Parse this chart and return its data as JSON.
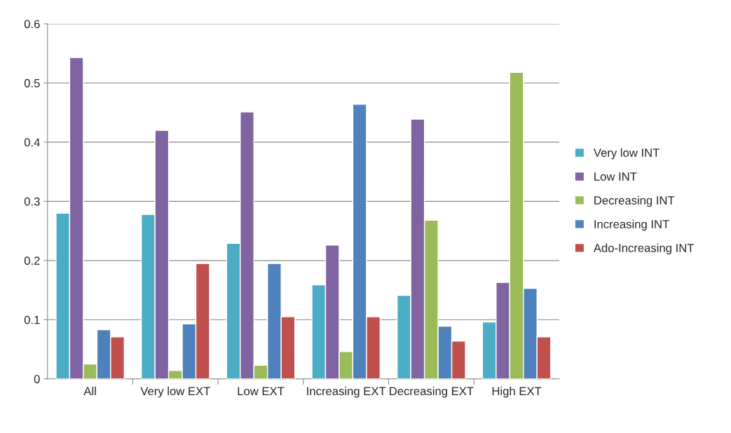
{
  "chart_data": {
    "type": "bar",
    "categories": [
      "All",
      "Very low EXT",
      "Low EXT",
      "Increasing EXT",
      "Decreasing EXT",
      "High EXT"
    ],
    "series": [
      {
        "name": "Very low INT",
        "color": "#4bacc6",
        "values": [
          0.28,
          0.278,
          0.229,
          0.159,
          0.141,
          0.096
        ]
      },
      {
        "name": "Low INT",
        "color": "#8064a2",
        "values": [
          0.543,
          0.42,
          0.451,
          0.226,
          0.439,
          0.163
        ]
      },
      {
        "name": "Decreasing INT",
        "color": "#9bbb59",
        "values": [
          0.025,
          0.014,
          0.023,
          0.046,
          0.268,
          0.518
        ]
      },
      {
        "name": "Increasing INT",
        "color": "#4f81bd",
        "values": [
          0.083,
          0.093,
          0.195,
          0.464,
          0.089,
          0.153
        ]
      },
      {
        "name": "Ado-Increasing INT",
        "color": "#c0504d",
        "values": [
          0.071,
          0.195,
          0.105,
          0.105,
          0.064,
          0.071
        ]
      }
    ],
    "ylim": [
      0,
      0.6
    ],
    "yticks": [
      {
        "value": 0,
        "label": "0"
      },
      0.1,
      0.2,
      0.3,
      0.4,
      0.5,
      0.6
    ],
    "grid": "y",
    "legend": "right"
  }
}
